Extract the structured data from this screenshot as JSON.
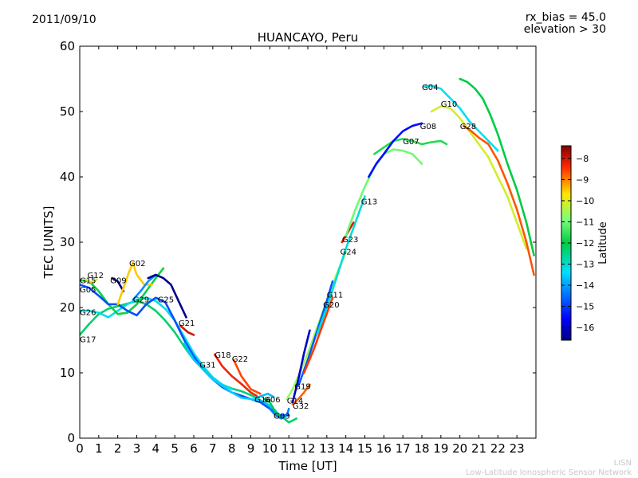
{
  "header": {
    "date": "2011/09/10",
    "rx_bias": "rx_bias = 45.0",
    "elevation": "elevation > 30"
  },
  "footer": {
    "network_abbr": "LISN",
    "network_name": "Low-Latitude Ionospheric Sensor Network"
  },
  "colorbar": {
    "label": "Latitude",
    "ticks": [
      "−8",
      "−9",
      "−10",
      "−11",
      "−12",
      "−13",
      "−14",
      "−15",
      "−16"
    ],
    "tick_values": [
      -8,
      -9,
      -10,
      -11,
      -12,
      -13,
      -14,
      -15,
      -16
    ],
    "range": [
      -16.6,
      -7.4
    ]
  },
  "chart_data": {
    "type": "line",
    "title": "HUANCAYO, Peru",
    "xlabel": "Time [UT]",
    "ylabel": "TEC [UNITS]",
    "xlim": [
      0,
      24
    ],
    "ylim": [
      0,
      60
    ],
    "xticks": [
      "0",
      "1",
      "2",
      "3",
      "4",
      "5",
      "6",
      "7",
      "8",
      "9",
      "10",
      "11",
      "12",
      "13",
      "14",
      "15",
      "16",
      "17",
      "18",
      "19",
      "20",
      "21",
      "22",
      "23"
    ],
    "yticks": [
      "0",
      "10",
      "20",
      "30",
      "40",
      "50",
      "60"
    ],
    "grid": false,
    "series": [
      {
        "name": "G17",
        "lat": -12.3,
        "label_at": [
          0.0,
          15.2
        ],
        "x": [
          0.0,
          0.5,
          1.0,
          1.5,
          2.0,
          2.5,
          3.0,
          3.5,
          4.0,
          4.5,
          5.0,
          5.5,
          6.0,
          6.5,
          7.0,
          7.5,
          8.0,
          8.5,
          9.0,
          9.5,
          10.0,
          10.5,
          11.0,
          11.4
        ],
        "y": [
          15.8,
          17.5,
          19.0,
          19.8,
          20.2,
          20.6,
          21.0,
          20.5,
          19.5,
          18.0,
          16.2,
          14.0,
          12.0,
          10.5,
          9.2,
          8.2,
          7.6,
          7.2,
          6.6,
          5.8,
          4.8,
          3.6,
          2.4,
          3.0
        ]
      },
      {
        "name": "G26",
        "lat": -13.2,
        "label_at": [
          0.0,
          19.3
        ],
        "x": [
          0.0,
          0.5,
          1.0,
          1.5,
          2.0,
          2.5,
          3.0,
          3.5,
          4.0,
          4.5,
          5.0,
          5.5,
          6.0,
          6.5,
          7.0,
          7.5,
          8.0
        ],
        "y": [
          19.5,
          19.5,
          19.2,
          18.5,
          19.5,
          20.5,
          21.2,
          21.5,
          21.0,
          19.8,
          18.0,
          15.5,
          13.0,
          11.0,
          9.3,
          8.2,
          7.5
        ]
      },
      {
        "name": "G15",
        "lat": -11.9,
        "label_at": [
          0.0,
          24.2
        ],
        "x": [
          0.0,
          0.5,
          1.0,
          1.5,
          2.0,
          2.5,
          3.0,
          3.5,
          4.0,
          4.4
        ],
        "y": [
          24.2,
          24.0,
          22.5,
          20.5,
          19.0,
          19.2,
          20.5,
          22.5,
          24.5,
          26.0
        ]
      },
      {
        "name": "G05",
        "lat": -14.8,
        "label_at": [
          0.0,
          22.8
        ],
        "x": [
          0.0,
          0.5,
          1.0,
          1.5,
          2.0,
          2.5,
          3.0,
          3.5,
          4.0,
          4.5,
          5.0,
          5.5,
          6.0,
          6.5,
          7.0,
          7.5,
          8.0,
          8.5,
          9.0,
          9.5,
          10.0,
          10.5,
          11.0
        ],
        "y": [
          23.5,
          23.0,
          21.8,
          20.5,
          20.5,
          19.5,
          18.8,
          20.5,
          21.5,
          20.8,
          18.0,
          15.0,
          12.5,
          10.5,
          9.0,
          7.8,
          7.0,
          6.5,
          6.0,
          5.5,
          4.5,
          3.5,
          3.5
        ]
      },
      {
        "name": "G12",
        "lat": -10.0,
        "label_at": [
          0.4,
          25.0
        ],
        "x": [
          0.3,
          0.6,
          0.9
        ],
        "y": [
          24.3,
          23.8,
          24.3
        ]
      },
      {
        "name": "G09",
        "lat": -16.5,
        "label_at": [
          1.6,
          24.2
        ],
        "x": [
          1.7,
          2.0,
          2.3
        ],
        "y": [
          24.5,
          24.0,
          22.5
        ]
      },
      {
        "name": "G02",
        "lat": -9.5,
        "label_at": [
          2.6,
          26.8
        ],
        "x": [
          2.0,
          2.3,
          2.6,
          2.8,
          3.0,
          3.4,
          3.8
        ],
        "y": [
          20.5,
          23.0,
          25.5,
          26.8,
          25.0,
          23.5,
          23.5
        ]
      },
      {
        "name": "G29",
        "lat": -14.2,
        "label_at": [
          2.8,
          21.3
        ],
        "x": [
          2.8,
          3.2,
          3.6,
          4.0
        ],
        "y": [
          21.2,
          22.5,
          24.0,
          25.0
        ]
      },
      {
        "name": "G25",
        "lat": -16.5,
        "label_at": [
          4.1,
          21.3
        ],
        "x": [
          3.6,
          4.0,
          4.4,
          4.8,
          5.2,
          5.6
        ],
        "y": [
          24.5,
          25.0,
          24.5,
          23.5,
          21.0,
          18.5
        ]
      },
      {
        "name": "G21",
        "lat": -8.0,
        "label_at": [
          5.2,
          17.7
        ],
        "x": [
          5.3,
          5.7,
          6.0
        ],
        "y": [
          17.2,
          16.2,
          15.8
        ]
      },
      {
        "name": "G31",
        "lat": -13.6,
        "label_at": [
          6.3,
          11.3
        ],
        "x": [
          5.5,
          6.0,
          6.5,
          7.0,
          7.5,
          8.0,
          8.5,
          9.0,
          9.5,
          10.0,
          10.3
        ],
        "y": [
          14.5,
          12.0,
          10.5,
          9.0,
          8.0,
          7.0,
          6.2,
          6.0,
          5.8,
          5.0,
          4.2
        ]
      },
      {
        "name": "G18",
        "lat": -8.3,
        "label_at": [
          7.1,
          12.8
        ],
        "x": [
          7.1,
          7.5,
          8.0,
          8.5,
          9.0,
          9.3
        ],
        "y": [
          12.8,
          11.0,
          9.5,
          8.3,
          7.0,
          6.5
        ]
      },
      {
        "name": "G22",
        "lat": -8.6,
        "label_at": [
          8.0,
          12.2
        ],
        "x": [
          8.1,
          8.5,
          9.0,
          9.5
        ],
        "y": [
          12.0,
          9.5,
          7.5,
          6.8
        ]
      },
      {
        "name": "G16",
        "lat": -13.8,
        "label_at": [
          9.2,
          6.0
        ],
        "x": [
          9.3,
          9.6,
          9.9,
          10.2
        ],
        "y": [
          6.2,
          6.5,
          6.8,
          6.3
        ]
      },
      {
        "name": "G06",
        "lat": -12.1,
        "label_at": [
          9.7,
          6.0
        ],
        "x": [
          9.7,
          10.0,
          10.3,
          10.6
        ],
        "y": [
          6.0,
          5.5,
          4.0,
          3.2
        ]
      },
      {
        "name": "G03",
        "lat": -14.3,
        "label_at": [
          10.2,
          3.5
        ],
        "x": [
          10.0,
          10.3,
          10.6,
          10.9,
          11.0
        ],
        "y": [
          4.5,
          3.5,
          3.0,
          3.5,
          4.5
        ]
      },
      {
        "name": "G14",
        "lat": -10.6,
        "label_at": [
          10.9,
          5.8
        ],
        "x": [
          10.9,
          11.2,
          11.5,
          12.0,
          12.5,
          13.0,
          13.5,
          14.0
        ],
        "y": [
          6.0,
          7.5,
          9.5,
          13.0,
          17.0,
          21.0,
          25.0,
          28.5
        ]
      },
      {
        "name": "G32",
        "lat": -8.8,
        "label_at": [
          11.2,
          5.0
        ],
        "x": [
          11.2,
          11.5,
          11.8,
          12.1
        ],
        "y": [
          5.2,
          6.0,
          7.0,
          8.2
        ]
      },
      {
        "name": "G19",
        "lat": -16.0,
        "label_at": [
          11.3,
          8.0
        ],
        "x": [
          11.2,
          11.5,
          11.8,
          12.1
        ],
        "y": [
          5.5,
          9.0,
          13.0,
          16.5
        ]
      },
      {
        "name": "G11",
        "lat": -14.7,
        "label_at": [
          13.0,
          22.0
        ],
        "x": [
          11.5,
          12.0,
          12.5,
          13.0,
          13.3
        ],
        "y": [
          8.0,
          12.0,
          16.5,
          21.0,
          24.0
        ]
      },
      {
        "name": "G20",
        "lat": -8.5,
        "label_at": [
          12.8,
          20.5
        ],
        "x": [
          11.8,
          12.3,
          12.8,
          13.3
        ],
        "y": [
          10.0,
          13.5,
          17.5,
          21.5
        ]
      },
      {
        "name": "G24",
        "lat": -13.1,
        "label_at": [
          13.7,
          28.6
        ],
        "x": [
          12.5,
          13.0,
          13.5,
          14.0,
          14.5,
          15.0
        ],
        "y": [
          16.0,
          20.0,
          24.5,
          29.0,
          33.0,
          37.0
        ]
      },
      {
        "name": "G23",
        "lat": -8.1,
        "label_at": [
          13.8,
          30.5
        ],
        "x": [
          13.8,
          14.1,
          14.4
        ],
        "y": [
          30.0,
          31.5,
          33.0
        ]
      },
      {
        "name": "G13",
        "lat": -11.0,
        "label_at": [
          14.8,
          36.3
        ],
        "x": [
          14.0,
          14.5,
          15.0,
          15.5,
          16.0,
          16.5,
          17.0,
          17.5,
          18.0
        ],
        "y": [
          31.0,
          35.0,
          38.5,
          41.5,
          43.5,
          44.2,
          44.0,
          43.5,
          42.0
        ]
      },
      {
        "name": "G07",
        "lat": -11.7,
        "label_at": [
          17.0,
          45.5
        ],
        "x": [
          15.5,
          16.0,
          16.5,
          17.0,
          17.5,
          18.0,
          18.5,
          19.0,
          19.3
        ],
        "y": [
          43.5,
          44.5,
          45.5,
          45.8,
          45.5,
          45.0,
          45.3,
          45.5,
          45.0
        ]
      },
      {
        "name": "G08",
        "lat": -15.5,
        "label_at": [
          17.9,
          47.8
        ],
        "x": [
          15.2,
          15.6,
          16.0,
          16.5,
          17.0,
          17.5,
          18.0
        ],
        "y": [
          40.0,
          42.0,
          43.5,
          45.5,
          47.0,
          47.8,
          48.2
        ]
      },
      {
        "name": "G04",
        "lat": -13.3,
        "label_at": [
          18.0,
          53.8
        ],
        "x": [
          18.1,
          18.5,
          19.0,
          19.5,
          20.0,
          20.5,
          21.0,
          21.5,
          22.0
        ],
        "y": [
          53.8,
          54.0,
          53.5,
          52.0,
          50.5,
          48.5,
          47.0,
          45.5,
          44.0
        ]
      },
      {
        "name": "G10",
        "lat": -10.1,
        "label_at": [
          19.0,
          51.2
        ],
        "x": [
          18.5,
          19.0,
          19.5,
          20.0,
          20.5,
          21.0,
          21.5,
          22.0,
          22.5,
          23.0,
          23.5
        ],
        "y": [
          50.0,
          50.8,
          50.5,
          49.0,
          47.0,
          45.0,
          43.0,
          40.0,
          37.0,
          33.0,
          29.0
        ]
      },
      {
        "name": "G28",
        "lat": -8.7,
        "label_at": [
          20.0,
          47.8
        ],
        "x": [
          20.2,
          20.6,
          21.0,
          21.5,
          22.0,
          22.5,
          23.0,
          23.5,
          23.9
        ],
        "y": [
          47.8,
          47.0,
          46.0,
          45.0,
          42.5,
          39.0,
          35.0,
          30.0,
          25.0
        ]
      },
      {
        "name": "",
        "lat": -12.0,
        "label_at": null,
        "x": [
          20.0,
          20.4,
          20.8,
          21.2,
          21.6,
          22.0,
          22.5,
          23.0,
          23.5,
          23.9
        ],
        "y": [
          55.0,
          54.5,
          53.5,
          52.0,
          49.5,
          46.5,
          42.0,
          38.0,
          33.0,
          28.0
        ]
      }
    ]
  }
}
